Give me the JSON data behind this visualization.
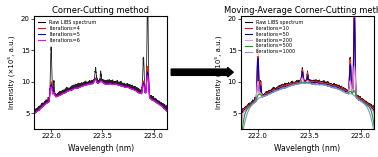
{
  "title_left": "Corner-Cutting method",
  "title_right": "Moving-Average Corner-Cutting method",
  "xlabel": "Wavelength (nm)",
  "ylabel": "Intensity (×10⁵, a.u.)",
  "xlim": [
    221.5,
    225.4
  ],
  "ylim": [
    2.5,
    20.5
  ],
  "yticks": [
    5,
    10,
    15,
    20
  ],
  "xticks": [
    222.0,
    223.5,
    225.0
  ],
  "left_legend": [
    "Raw LIBS spectrum",
    "Iterations=4",
    "Iterations=5",
    "Iterations=6"
  ],
  "right_legend": [
    "Raw LIBS spectrum",
    "iterations=10",
    "iterations=50",
    "iterations=200",
    "iterations=500",
    "iterations=1000"
  ],
  "left_colors": [
    "#000000",
    "#ff0000",
    "#0000ff",
    "#ff00ff"
  ],
  "right_colors": [
    "#000000",
    "#ff0000",
    "#0000aa",
    "#ff88ff",
    "#00aa00",
    "#8888ff"
  ],
  "background": "#ffffff",
  "figsize": [
    3.78,
    1.57
  ],
  "dpi": 100
}
